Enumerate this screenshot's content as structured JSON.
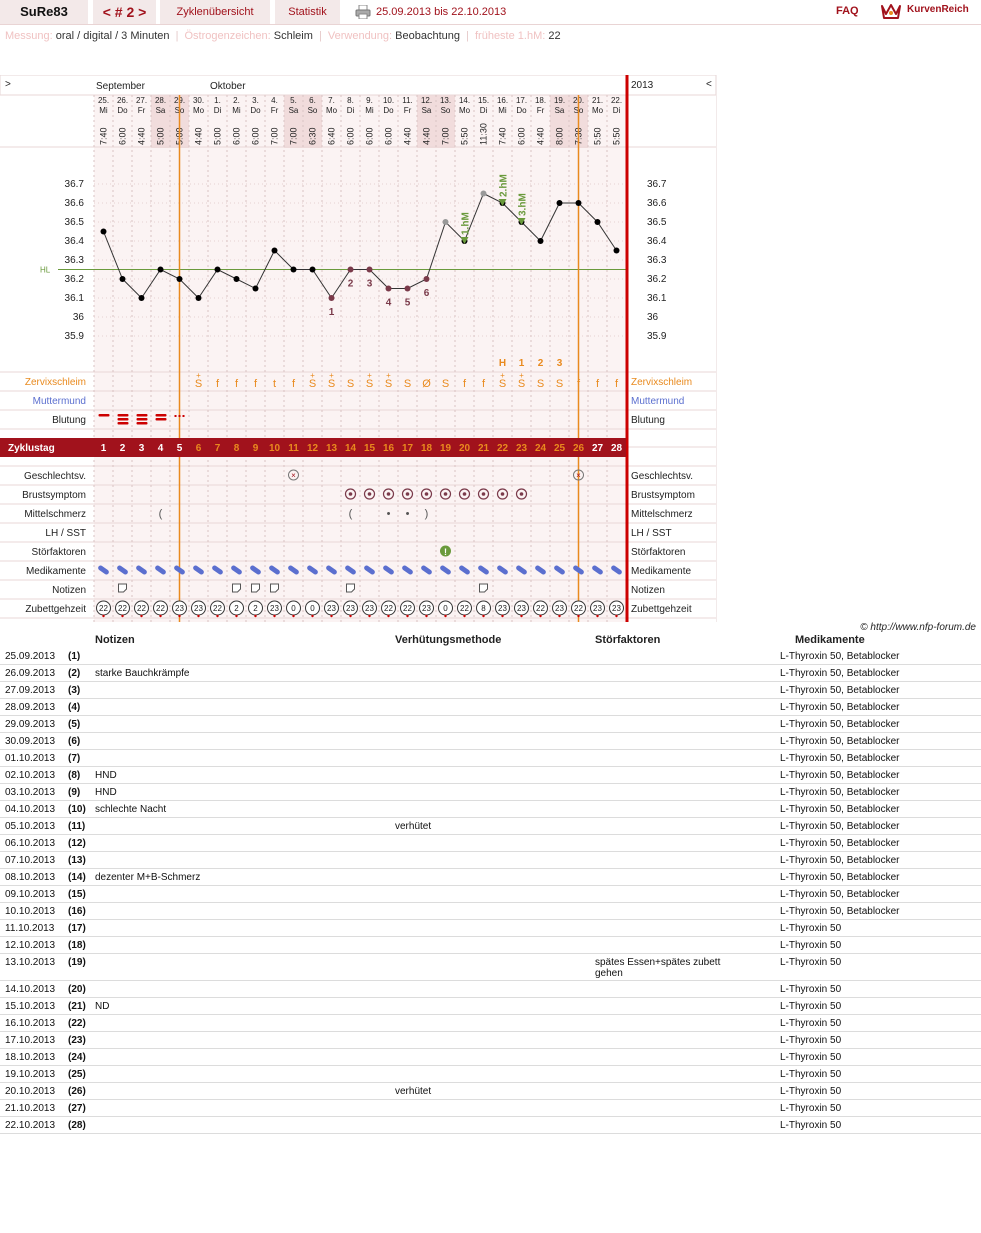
{
  "header": {
    "user": "SuRe83",
    "cycle_nav": "< # 2 >",
    "tabs": [
      "Zyklenübersicht",
      "Statistik"
    ],
    "date_range": "25.09.2013 bis 22.10.2013",
    "faq": "FAQ",
    "logo_text": "KurvenReich"
  },
  "info": {
    "messung_label": "Messung:",
    "messung_value": "oral / digital / 3 Minuten",
    "oestrogen_label": "Östrogenzeichen:",
    "oestrogen_value": "Schleim",
    "verwendung_label": "Verwendung:",
    "verwendung_value": "Beobachtung",
    "hm_label": "früheste 1.hM:",
    "hm_value": "22"
  },
  "chart_data": {
    "type": "line",
    "title": "",
    "nav_left": ">",
    "nav_right": "<",
    "year": "2013",
    "months": [
      "September",
      "Oktober"
    ],
    "days": [
      {
        "d": "25.",
        "w": "Mi",
        "t": "7:40"
      },
      {
        "d": "26.",
        "w": "Do",
        "t": "6:00"
      },
      {
        "d": "27.",
        "w": "Fr",
        "t": "4:40"
      },
      {
        "d": "28.",
        "w": "Sa",
        "t": "5:00"
      },
      {
        "d": "29.",
        "w": "So",
        "t": "5:00"
      },
      {
        "d": "30.",
        "w": "Mo",
        "t": "4:40"
      },
      {
        "d": "1.",
        "w": "Di",
        "t": "5:00"
      },
      {
        "d": "2.",
        "w": "Mi",
        "t": "6:00"
      },
      {
        "d": "3.",
        "w": "Do",
        "t": "6:00"
      },
      {
        "d": "4.",
        "w": "Fr",
        "t": "7:00"
      },
      {
        "d": "5.",
        "w": "Sa",
        "t": "7:00"
      },
      {
        "d": "6.",
        "w": "So",
        "t": "6:30"
      },
      {
        "d": "7.",
        "w": "Mo",
        "t": "6:40"
      },
      {
        "d": "8.",
        "w": "Di",
        "t": "6:00"
      },
      {
        "d": "9.",
        "w": "Mi",
        "t": "6:00"
      },
      {
        "d": "10.",
        "w": "Do",
        "t": "6:00"
      },
      {
        "d": "11.",
        "w": "Fr",
        "t": "4:40"
      },
      {
        "d": "12.",
        "w": "Sa",
        "t": "4:40"
      },
      {
        "d": "13.",
        "w": "So",
        "t": "7:00"
      },
      {
        "d": "14.",
        "w": "Mo",
        "t": "5:50"
      },
      {
        "d": "15.",
        "w": "Di",
        "t": "11:30"
      },
      {
        "d": "16.",
        "w": "Mi",
        "t": "7:40"
      },
      {
        "d": "17.",
        "w": "Do",
        "t": "6:00"
      },
      {
        "d": "18.",
        "w": "Fr",
        "t": "4:40"
      },
      {
        "d": "19.",
        "w": "Sa",
        "t": "8:00"
      },
      {
        "d": "20.",
        "w": "So",
        "t": "7:30"
      },
      {
        "d": "21.",
        "w": "Mo",
        "t": "5:50"
      },
      {
        "d": "22.",
        "w": "Di",
        "t": "5:50"
      }
    ],
    "weekend_indices": [
      3,
      4,
      10,
      11,
      17,
      18,
      24,
      25
    ],
    "yticks": [
      "36.7",
      "36.6",
      "36.5",
      "36.4",
      "36.3",
      "36.2",
      "36.1",
      "36",
      "35.9"
    ],
    "ylim": [
      35.9,
      36.7
    ],
    "hl_label": "HL",
    "hl_value": 36.25,
    "temps": [
      36.45,
      36.2,
      36.1,
      36.25,
      36.2,
      36.1,
      36.25,
      36.2,
      36.15,
      36.35,
      36.25,
      36.25,
      36.1,
      36.25,
      36.25,
      36.15,
      36.15,
      36.2,
      36.5,
      36.4,
      36.65,
      36.6,
      36.5,
      36.4,
      36.6,
      36.6,
      36.5,
      36.35
    ],
    "grey_points": [
      18,
      20
    ],
    "lower_labels": [
      {
        "i": 12,
        "label": "1"
      },
      {
        "i": 13,
        "label": "2"
      },
      {
        "i": 14,
        "label": "3"
      },
      {
        "i": 15,
        "label": "4"
      },
      {
        "i": 16,
        "label": "5"
      },
      {
        "i": 17,
        "label": "6"
      }
    ],
    "higher_labels": [
      {
        "i": 19,
        "label": "1.hM"
      },
      {
        "i": 21,
        "label": "2.hM"
      },
      {
        "i": 22,
        "label": "3.hM"
      }
    ],
    "h_row": [
      {
        "i": 21,
        "label": "H"
      },
      {
        "i": 22,
        "label": "1"
      },
      {
        "i": 23,
        "label": "2"
      },
      {
        "i": 24,
        "label": "3"
      }
    ],
    "cervix": [
      "",
      "",
      "",
      "",
      "",
      "S+",
      "f",
      "f",
      "f",
      "t",
      "f",
      "S+",
      "S+",
      "S",
      "S+",
      "S+",
      "S",
      "Ø",
      "S",
      "f",
      "f",
      "S+",
      "S+",
      "S",
      "S",
      "f",
      "f",
      "f"
    ],
    "bleeding": [
      1,
      3,
      3,
      2,
      0.5,
      0,
      0,
      0,
      0,
      0,
      0,
      0,
      0,
      0,
      0,
      0,
      0,
      0,
      0,
      0,
      0,
      0,
      0,
      0,
      0,
      0,
      0,
      0
    ],
    "cycle_days": [
      "1",
      "2",
      "3",
      "4",
      "5",
      "6",
      "7",
      "8",
      "9",
      "10",
      "11",
      "12",
      "13",
      "14",
      "15",
      "16",
      "17",
      "18",
      "19",
      "20",
      "21",
      "22",
      "23",
      "24",
      "25",
      "26",
      "27",
      "28"
    ],
    "rows_left": [
      "Zervixschleim",
      "Muttermund",
      "Blutung",
      "Zyklustag",
      "Geschlechtsv.",
      "Brustsymptom",
      "Mittelschmerz",
      "LH / SST",
      "Störfaktoren",
      "Medikamente",
      "Notizen",
      "Zubettgehzeit"
    ],
    "rows_right": [
      "Zervixschleim",
      "Muttermund",
      "Blutung",
      "Geschlechtsv.",
      "Brustsymptom",
      "Mittelschmerz",
      "LH / SST",
      "Störfaktoren",
      "Medikamente",
      "Notizen",
      "Zubettgehzeit"
    ],
    "sex": [
      10,
      25
    ],
    "breast": [
      13,
      14,
      15,
      16,
      17,
      18,
      19,
      20,
      21,
      22
    ],
    "mittelschmerz": [
      {
        "i": 3,
        "s": "("
      },
      {
        "i": 13,
        "s": "("
      },
      {
        "i": 15,
        "s": "•"
      },
      {
        "i": 16,
        "s": "•"
      },
      {
        "i": 17,
        "s": ")"
      }
    ],
    "stoer": [
      18
    ],
    "notes_days": [
      1,
      7,
      8,
      9,
      13,
      20
    ],
    "bedtimes": [
      "22",
      "22",
      "22",
      "22",
      "23",
      "23",
      "22",
      "2",
      "2",
      "23",
      "0",
      "0",
      "23",
      "23",
      "23",
      "22",
      "22",
      "23",
      "0",
      "22",
      "8",
      "23",
      "23",
      "22",
      "23",
      "22",
      "23",
      "23"
    ],
    "orange_lines": [
      4.5,
      25.5
    ]
  },
  "copyright": "© http://www.nfp-forum.de",
  "notes_table": {
    "headers": [
      "Notizen",
      "Verhütungsmethode",
      "Störfaktoren",
      "Medikamente"
    ],
    "rows": [
      {
        "date": "25.09.2013",
        "num": "(1)",
        "note": "",
        "method": "",
        "stoer": "",
        "med": "L-Thyroxin 50, Betablocker"
      },
      {
        "date": "26.09.2013",
        "num": "(2)",
        "note": "starke Bauchkrämpfe",
        "method": "",
        "stoer": "",
        "med": "L-Thyroxin 50, Betablocker"
      },
      {
        "date": "27.09.2013",
        "num": "(3)",
        "note": "",
        "method": "",
        "stoer": "",
        "med": "L-Thyroxin 50, Betablocker"
      },
      {
        "date": "28.09.2013",
        "num": "(4)",
        "note": "",
        "method": "",
        "stoer": "",
        "med": "L-Thyroxin 50, Betablocker"
      },
      {
        "date": "29.09.2013",
        "num": "(5)",
        "note": "",
        "method": "",
        "stoer": "",
        "med": "L-Thyroxin 50, Betablocker"
      },
      {
        "date": "30.09.2013",
        "num": "(6)",
        "note": "",
        "method": "",
        "stoer": "",
        "med": "L-Thyroxin 50, Betablocker"
      },
      {
        "date": "01.10.2013",
        "num": "(7)",
        "note": "",
        "method": "",
        "stoer": "",
        "med": "L-Thyroxin 50, Betablocker"
      },
      {
        "date": "02.10.2013",
        "num": "(8)",
        "note": "HND",
        "method": "",
        "stoer": "",
        "med": "L-Thyroxin 50, Betablocker"
      },
      {
        "date": "03.10.2013",
        "num": "(9)",
        "note": "HND",
        "method": "",
        "stoer": "",
        "med": "L-Thyroxin 50, Betablocker"
      },
      {
        "date": "04.10.2013",
        "num": "(10)",
        "note": "schlechte Nacht",
        "method": "",
        "stoer": "",
        "med": "L-Thyroxin 50, Betablocker"
      },
      {
        "date": "05.10.2013",
        "num": "(11)",
        "note": "",
        "method": "verhütet",
        "stoer": "",
        "med": "L-Thyroxin 50, Betablocker"
      },
      {
        "date": "06.10.2013",
        "num": "(12)",
        "note": "",
        "method": "",
        "stoer": "",
        "med": "L-Thyroxin 50, Betablocker"
      },
      {
        "date": "07.10.2013",
        "num": "(13)",
        "note": "",
        "method": "",
        "stoer": "",
        "med": "L-Thyroxin 50, Betablocker"
      },
      {
        "date": "08.10.2013",
        "num": "(14)",
        "note": "dezenter M+B-Schmerz",
        "method": "",
        "stoer": "",
        "med": "L-Thyroxin 50, Betablocker"
      },
      {
        "date": "09.10.2013",
        "num": "(15)",
        "note": "",
        "method": "",
        "stoer": "",
        "med": "L-Thyroxin 50, Betablocker"
      },
      {
        "date": "10.10.2013",
        "num": "(16)",
        "note": "",
        "method": "",
        "stoer": "",
        "med": "L-Thyroxin 50, Betablocker"
      },
      {
        "date": "11.10.2013",
        "num": "(17)",
        "note": "",
        "method": "",
        "stoer": "",
        "med": "L-Thyroxin 50"
      },
      {
        "date": "12.10.2013",
        "num": "(18)",
        "note": "",
        "method": "",
        "stoer": "",
        "med": "L-Thyroxin 50"
      },
      {
        "date": "13.10.2013",
        "num": "(19)",
        "note": "",
        "method": "",
        "stoer": "spätes Essen+spätes zubett gehen",
        "med": "L-Thyroxin 50"
      },
      {
        "date": "14.10.2013",
        "num": "(20)",
        "note": "",
        "method": "",
        "stoer": "",
        "med": "L-Thyroxin 50"
      },
      {
        "date": "15.10.2013",
        "num": "(21)",
        "note": "ND",
        "method": "",
        "stoer": "",
        "med": "L-Thyroxin 50"
      },
      {
        "date": "16.10.2013",
        "num": "(22)",
        "note": "",
        "method": "",
        "stoer": "",
        "med": "L-Thyroxin 50"
      },
      {
        "date": "17.10.2013",
        "num": "(23)",
        "note": "",
        "method": "",
        "stoer": "",
        "med": "L-Thyroxin 50"
      },
      {
        "date": "18.10.2013",
        "num": "(24)",
        "note": "",
        "method": "",
        "stoer": "",
        "med": "L-Thyroxin 50"
      },
      {
        "date": "19.10.2013",
        "num": "(25)",
        "note": "",
        "method": "",
        "stoer": "",
        "med": "L-Thyroxin 50"
      },
      {
        "date": "20.10.2013",
        "num": "(26)",
        "note": "",
        "method": "verhütet",
        "stoer": "",
        "med": "L-Thyroxin 50"
      },
      {
        "date": "21.10.2013",
        "num": "(27)",
        "note": "",
        "method": "",
        "stoer": "",
        "med": "L-Thyroxin 50"
      },
      {
        "date": "22.10.2013",
        "num": "(28)",
        "note": "",
        "method": "",
        "stoer": "",
        "med": "L-Thyroxin 50"
      }
    ]
  },
  "colors": {
    "brand": "#a1121c",
    "orange": "#e98a1e",
    "mucus_blue": "#5b6fcf",
    "green": "#6a9a3c",
    "grid_bg": "#fbf3f3",
    "weekend_bg": "#f1dcdc"
  }
}
